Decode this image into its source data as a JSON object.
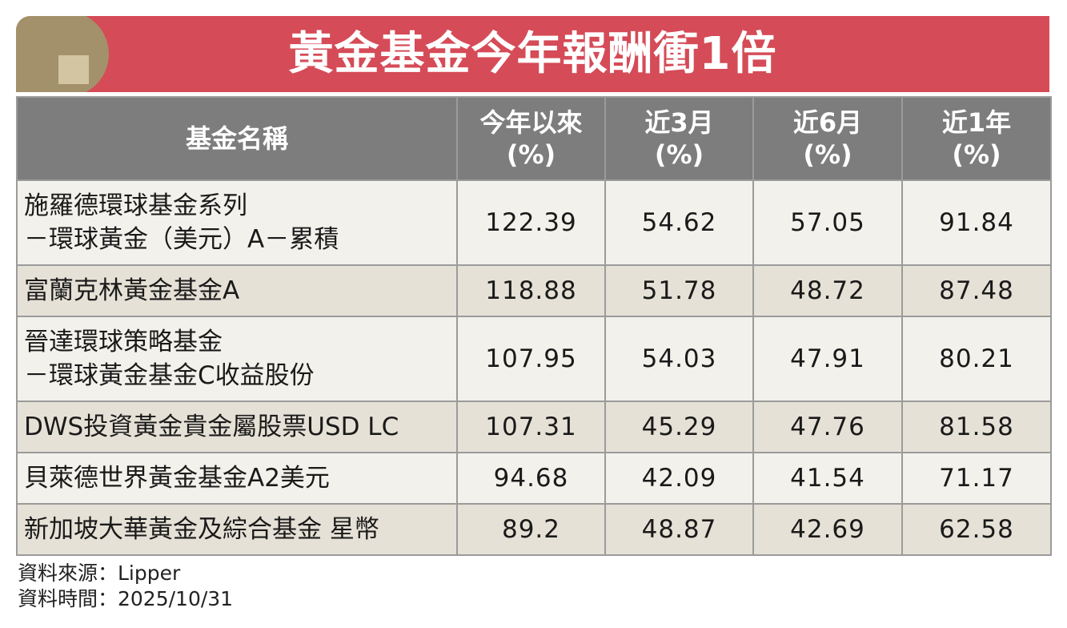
{
  "title": "黃金基金今年報酬衝1倍",
  "table": {
    "headers": [
      {
        "line1": "基金名稱",
        "line2": ""
      },
      {
        "line1": "今年以來",
        "line2": "(%)"
      },
      {
        "line1": "近3月",
        "line2": "(%)"
      },
      {
        "line1": "近6月",
        "line2": "(%)"
      },
      {
        "line1": "近1年",
        "line2": "(%)"
      }
    ],
    "rows": [
      {
        "name_line1": "施羅德環球基金系列",
        "name_line2": "－環球黃金（美元）A－累積",
        "ytd": "122.39",
        "m3": "54.62",
        "m6": "57.05",
        "y1": "91.84"
      },
      {
        "name_line1": "富蘭克林黃金基金A",
        "name_line2": "",
        "ytd": "118.88",
        "m3": "51.78",
        "m6": "48.72",
        "y1": "87.48"
      },
      {
        "name_line1": "晉達環球策略基金",
        "name_line2": "－環球黃金基金C收益股份",
        "ytd": "107.95",
        "m3": "54.03",
        "m6": "47.91",
        "y1": "80.21"
      },
      {
        "name_line1": "DWS投資黃金貴金屬股票USD LC",
        "name_line2": "",
        "ytd": "107.31",
        "m3": "45.29",
        "m6": "47.76",
        "y1": "81.58"
      },
      {
        "name_line1": "貝萊德世界黃金基金A2美元",
        "name_line2": "",
        "ytd": "94.68",
        "m3": "42.09",
        "m6": "41.54",
        "y1": "71.17"
      },
      {
        "name_line1": "新加坡大華黃金及綜合基金 星幣",
        "name_line2": "",
        "ytd": "89.2",
        "m3": "48.87",
        "m6": "42.69",
        "y1": "62.58"
      }
    ]
  },
  "footer": {
    "source": "資料來源：Lipper",
    "date": "資料時間：2025/10/31"
  }
}
